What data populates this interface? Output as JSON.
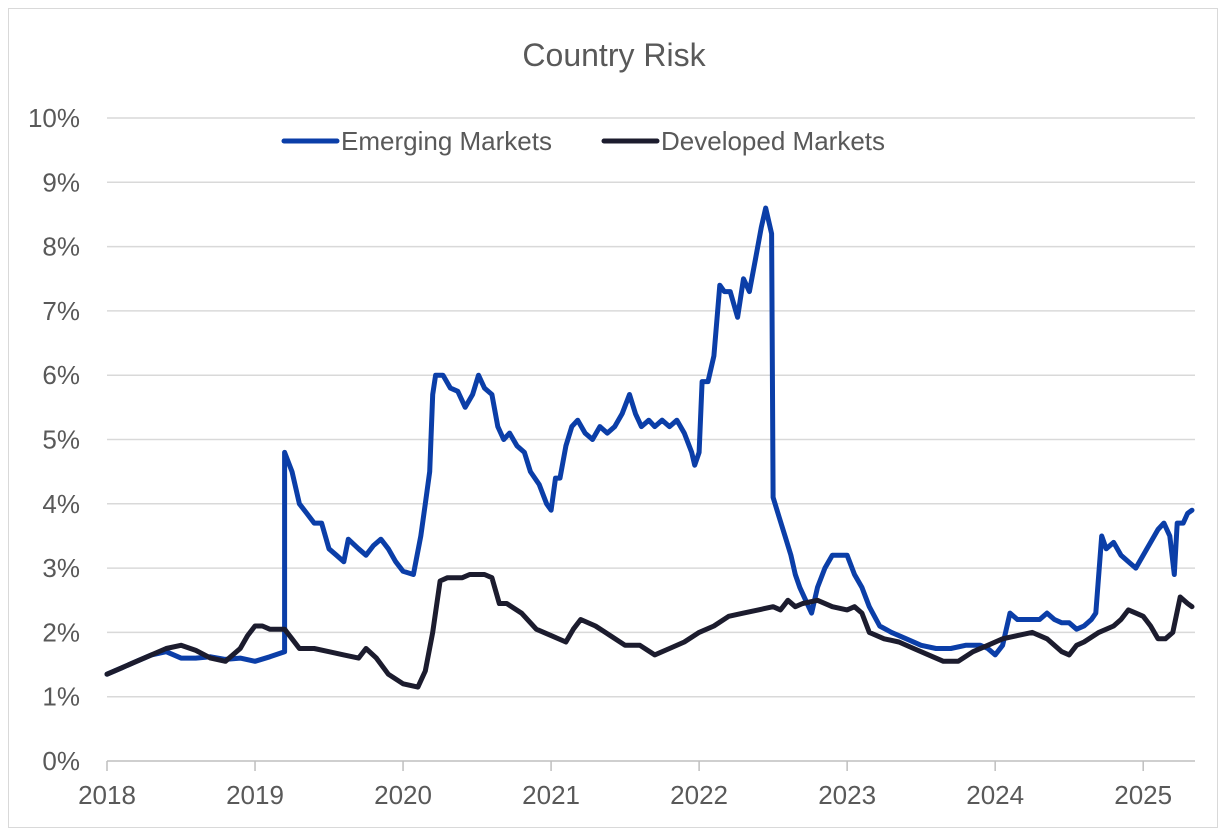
{
  "chart_data": {
    "type": "line",
    "title": "Country Risk",
    "xlabel": "",
    "ylabel": "",
    "x_ticks": [
      "2018",
      "2019",
      "2020",
      "2021",
      "2022",
      "2023",
      "2024",
      "2025"
    ],
    "y_ticks": [
      "0%",
      "1%",
      "2%",
      "3%",
      "4%",
      "5%",
      "6%",
      "7%",
      "8%",
      "9%",
      "10%"
    ],
    "xlim": [
      2018.0,
      2025.35
    ],
    "ylim": [
      0,
      10
    ],
    "grid": true,
    "legend": "top-center",
    "series": [
      {
        "name": "Emerging Markets",
        "color": "#0b3ea8",
        "points": [
          [
            2018.0,
            1.35
          ],
          [
            2018.1,
            1.45
          ],
          [
            2018.2,
            1.55
          ],
          [
            2018.3,
            1.65
          ],
          [
            2018.4,
            1.7
          ],
          [
            2018.5,
            1.6
          ],
          [
            2018.6,
            1.6
          ],
          [
            2018.7,
            1.62
          ],
          [
            2018.8,
            1.58
          ],
          [
            2018.9,
            1.6
          ],
          [
            2019.0,
            1.55
          ],
          [
            2019.1,
            1.62
          ],
          [
            2019.2,
            1.7
          ],
          [
            2019.2,
            4.8
          ],
          [
            2019.25,
            4.5
          ],
          [
            2019.3,
            4.0
          ],
          [
            2019.35,
            3.85
          ],
          [
            2019.4,
            3.7
          ],
          [
            2019.45,
            3.7
          ],
          [
            2019.5,
            3.3
          ],
          [
            2019.55,
            3.2
          ],
          [
            2019.6,
            3.1
          ],
          [
            2019.63,
            3.45
          ],
          [
            2019.7,
            3.3
          ],
          [
            2019.75,
            3.2
          ],
          [
            2019.8,
            3.35
          ],
          [
            2019.85,
            3.45
          ],
          [
            2019.9,
            3.3
          ],
          [
            2019.95,
            3.1
          ],
          [
            2020.0,
            2.95
          ],
          [
            2020.07,
            2.9
          ],
          [
            2020.12,
            3.5
          ],
          [
            2020.15,
            4.0
          ],
          [
            2020.18,
            4.5
          ],
          [
            2020.2,
            5.7
          ],
          [
            2020.22,
            6.0
          ],
          [
            2020.27,
            6.0
          ],
          [
            2020.32,
            5.8
          ],
          [
            2020.37,
            5.75
          ],
          [
            2020.42,
            5.5
          ],
          [
            2020.47,
            5.7
          ],
          [
            2020.51,
            6.0
          ],
          [
            2020.55,
            5.8
          ],
          [
            2020.6,
            5.7
          ],
          [
            2020.64,
            5.2
          ],
          [
            2020.68,
            5.0
          ],
          [
            2020.72,
            5.1
          ],
          [
            2020.77,
            4.9
          ],
          [
            2020.82,
            4.8
          ],
          [
            2020.86,
            4.5
          ],
          [
            2020.92,
            4.3
          ],
          [
            2020.97,
            4.0
          ],
          [
            2021.0,
            3.9
          ],
          [
            2021.03,
            4.4
          ],
          [
            2021.06,
            4.4
          ],
          [
            2021.1,
            4.9
          ],
          [
            2021.14,
            5.2
          ],
          [
            2021.18,
            5.3
          ],
          [
            2021.23,
            5.1
          ],
          [
            2021.28,
            5.0
          ],
          [
            2021.33,
            5.2
          ],
          [
            2021.38,
            5.1
          ],
          [
            2021.43,
            5.2
          ],
          [
            2021.48,
            5.4
          ],
          [
            2021.53,
            5.7
          ],
          [
            2021.57,
            5.4
          ],
          [
            2021.61,
            5.2
          ],
          [
            2021.66,
            5.3
          ],
          [
            2021.7,
            5.2
          ],
          [
            2021.75,
            5.3
          ],
          [
            2021.8,
            5.2
          ],
          [
            2021.85,
            5.3
          ],
          [
            2021.9,
            5.1
          ],
          [
            2021.95,
            4.8
          ],
          [
            2021.97,
            4.6
          ],
          [
            2022.0,
            4.8
          ],
          [
            2022.02,
            5.9
          ],
          [
            2022.06,
            5.9
          ],
          [
            2022.1,
            6.3
          ],
          [
            2022.14,
            7.4
          ],
          [
            2022.17,
            7.3
          ],
          [
            2022.21,
            7.3
          ],
          [
            2022.26,
            6.9
          ],
          [
            2022.3,
            7.5
          ],
          [
            2022.34,
            7.3
          ],
          [
            2022.38,
            7.8
          ],
          [
            2022.42,
            8.3
          ],
          [
            2022.45,
            8.6
          ],
          [
            2022.49,
            8.2
          ],
          [
            2022.5,
            4.1
          ],
          [
            2022.54,
            3.8
          ],
          [
            2022.58,
            3.5
          ],
          [
            2022.62,
            3.2
          ],
          [
            2022.65,
            2.9
          ],
          [
            2022.68,
            2.7
          ],
          [
            2022.72,
            2.5
          ],
          [
            2022.76,
            2.3
          ],
          [
            2022.8,
            2.7
          ],
          [
            2022.85,
            3.0
          ],
          [
            2022.9,
            3.2
          ],
          [
            2022.95,
            3.2
          ],
          [
            2023.0,
            3.2
          ],
          [
            2023.05,
            2.9
          ],
          [
            2023.1,
            2.7
          ],
          [
            2023.15,
            2.4
          ],
          [
            2023.22,
            2.1
          ],
          [
            2023.3,
            2.0
          ],
          [
            2023.4,
            1.9
          ],
          [
            2023.5,
            1.8
          ],
          [
            2023.6,
            1.75
          ],
          [
            2023.7,
            1.75
          ],
          [
            2023.8,
            1.8
          ],
          [
            2023.9,
            1.8
          ],
          [
            2023.95,
            1.75
          ],
          [
            2024.0,
            1.65
          ],
          [
            2024.05,
            1.8
          ],
          [
            2024.1,
            2.3
          ],
          [
            2024.15,
            2.2
          ],
          [
            2024.2,
            2.2
          ],
          [
            2024.25,
            2.2
          ],
          [
            2024.3,
            2.2
          ],
          [
            2024.35,
            2.3
          ],
          [
            2024.4,
            2.2
          ],
          [
            2024.45,
            2.15
          ],
          [
            2024.5,
            2.15
          ],
          [
            2024.55,
            2.05
          ],
          [
            2024.6,
            2.1
          ],
          [
            2024.65,
            2.2
          ],
          [
            2024.68,
            2.3
          ],
          [
            2024.72,
            3.5
          ],
          [
            2024.75,
            3.3
          ],
          [
            2024.8,
            3.4
          ],
          [
            2024.85,
            3.2
          ],
          [
            2024.9,
            3.1
          ],
          [
            2024.95,
            3.0
          ],
          [
            2025.0,
            3.2
          ],
          [
            2025.05,
            3.4
          ],
          [
            2025.1,
            3.6
          ],
          [
            2025.14,
            3.7
          ],
          [
            2025.18,
            3.5
          ],
          [
            2025.21,
            2.9
          ],
          [
            2025.23,
            3.7
          ],
          [
            2025.27,
            3.7
          ],
          [
            2025.3,
            3.85
          ],
          [
            2025.33,
            3.9
          ]
        ]
      },
      {
        "name": "Developed Markets",
        "color": "#1c1c2e",
        "points": [
          [
            2018.0,
            1.35
          ],
          [
            2018.1,
            1.45
          ],
          [
            2018.2,
            1.55
          ],
          [
            2018.3,
            1.65
          ],
          [
            2018.4,
            1.75
          ],
          [
            2018.5,
            1.8
          ],
          [
            2018.6,
            1.72
          ],
          [
            2018.7,
            1.6
          ],
          [
            2018.8,
            1.55
          ],
          [
            2018.9,
            1.75
          ],
          [
            2018.95,
            1.95
          ],
          [
            2019.0,
            2.1
          ],
          [
            2019.05,
            2.1
          ],
          [
            2019.1,
            2.05
          ],
          [
            2019.2,
            2.05
          ],
          [
            2019.25,
            1.9
          ],
          [
            2019.3,
            1.75
          ],
          [
            2019.4,
            1.75
          ],
          [
            2019.5,
            1.7
          ],
          [
            2019.6,
            1.65
          ],
          [
            2019.7,
            1.6
          ],
          [
            2019.75,
            1.75
          ],
          [
            2019.82,
            1.6
          ],
          [
            2019.9,
            1.35
          ],
          [
            2020.0,
            1.2
          ],
          [
            2020.1,
            1.15
          ],
          [
            2020.15,
            1.4
          ],
          [
            2020.2,
            2.0
          ],
          [
            2020.25,
            2.8
          ],
          [
            2020.3,
            2.85
          ],
          [
            2020.4,
            2.85
          ],
          [
            2020.45,
            2.9
          ],
          [
            2020.55,
            2.9
          ],
          [
            2020.6,
            2.85
          ],
          [
            2020.65,
            2.45
          ],
          [
            2020.7,
            2.45
          ],
          [
            2020.8,
            2.3
          ],
          [
            2020.9,
            2.05
          ],
          [
            2021.0,
            1.95
          ],
          [
            2021.1,
            1.85
          ],
          [
            2021.15,
            2.05
          ],
          [
            2021.2,
            2.2
          ],
          [
            2021.3,
            2.1
          ],
          [
            2021.4,
            1.95
          ],
          [
            2021.5,
            1.8
          ],
          [
            2021.6,
            1.8
          ],
          [
            2021.7,
            1.65
          ],
          [
            2021.8,
            1.75
          ],
          [
            2021.9,
            1.85
          ],
          [
            2022.0,
            2.0
          ],
          [
            2022.1,
            2.1
          ],
          [
            2022.2,
            2.25
          ],
          [
            2022.3,
            2.3
          ],
          [
            2022.4,
            2.35
          ],
          [
            2022.5,
            2.4
          ],
          [
            2022.55,
            2.35
          ],
          [
            2022.6,
            2.5
          ],
          [
            2022.65,
            2.4
          ],
          [
            2022.7,
            2.45
          ],
          [
            2022.8,
            2.5
          ],
          [
            2022.9,
            2.4
          ],
          [
            2023.0,
            2.35
          ],
          [
            2023.05,
            2.4
          ],
          [
            2023.1,
            2.3
          ],
          [
            2023.15,
            2.0
          ],
          [
            2023.25,
            1.9
          ],
          [
            2023.35,
            1.85
          ],
          [
            2023.45,
            1.75
          ],
          [
            2023.55,
            1.65
          ],
          [
            2023.65,
            1.55
          ],
          [
            2023.75,
            1.55
          ],
          [
            2023.85,
            1.7
          ],
          [
            2023.95,
            1.8
          ],
          [
            2024.05,
            1.9
          ],
          [
            2024.15,
            1.95
          ],
          [
            2024.25,
            2.0
          ],
          [
            2024.35,
            1.9
          ],
          [
            2024.45,
            1.7
          ],
          [
            2024.5,
            1.65
          ],
          [
            2024.55,
            1.8
          ],
          [
            2024.6,
            1.85
          ],
          [
            2024.7,
            2.0
          ],
          [
            2024.8,
            2.1
          ],
          [
            2024.85,
            2.2
          ],
          [
            2024.9,
            2.35
          ],
          [
            2024.95,
            2.3
          ],
          [
            2025.0,
            2.25
          ],
          [
            2025.05,
            2.1
          ],
          [
            2025.1,
            1.9
          ],
          [
            2025.15,
            1.9
          ],
          [
            2025.2,
            2.0
          ],
          [
            2025.25,
            2.55
          ],
          [
            2025.3,
            2.45
          ],
          [
            2025.33,
            2.4
          ]
        ]
      }
    ]
  }
}
